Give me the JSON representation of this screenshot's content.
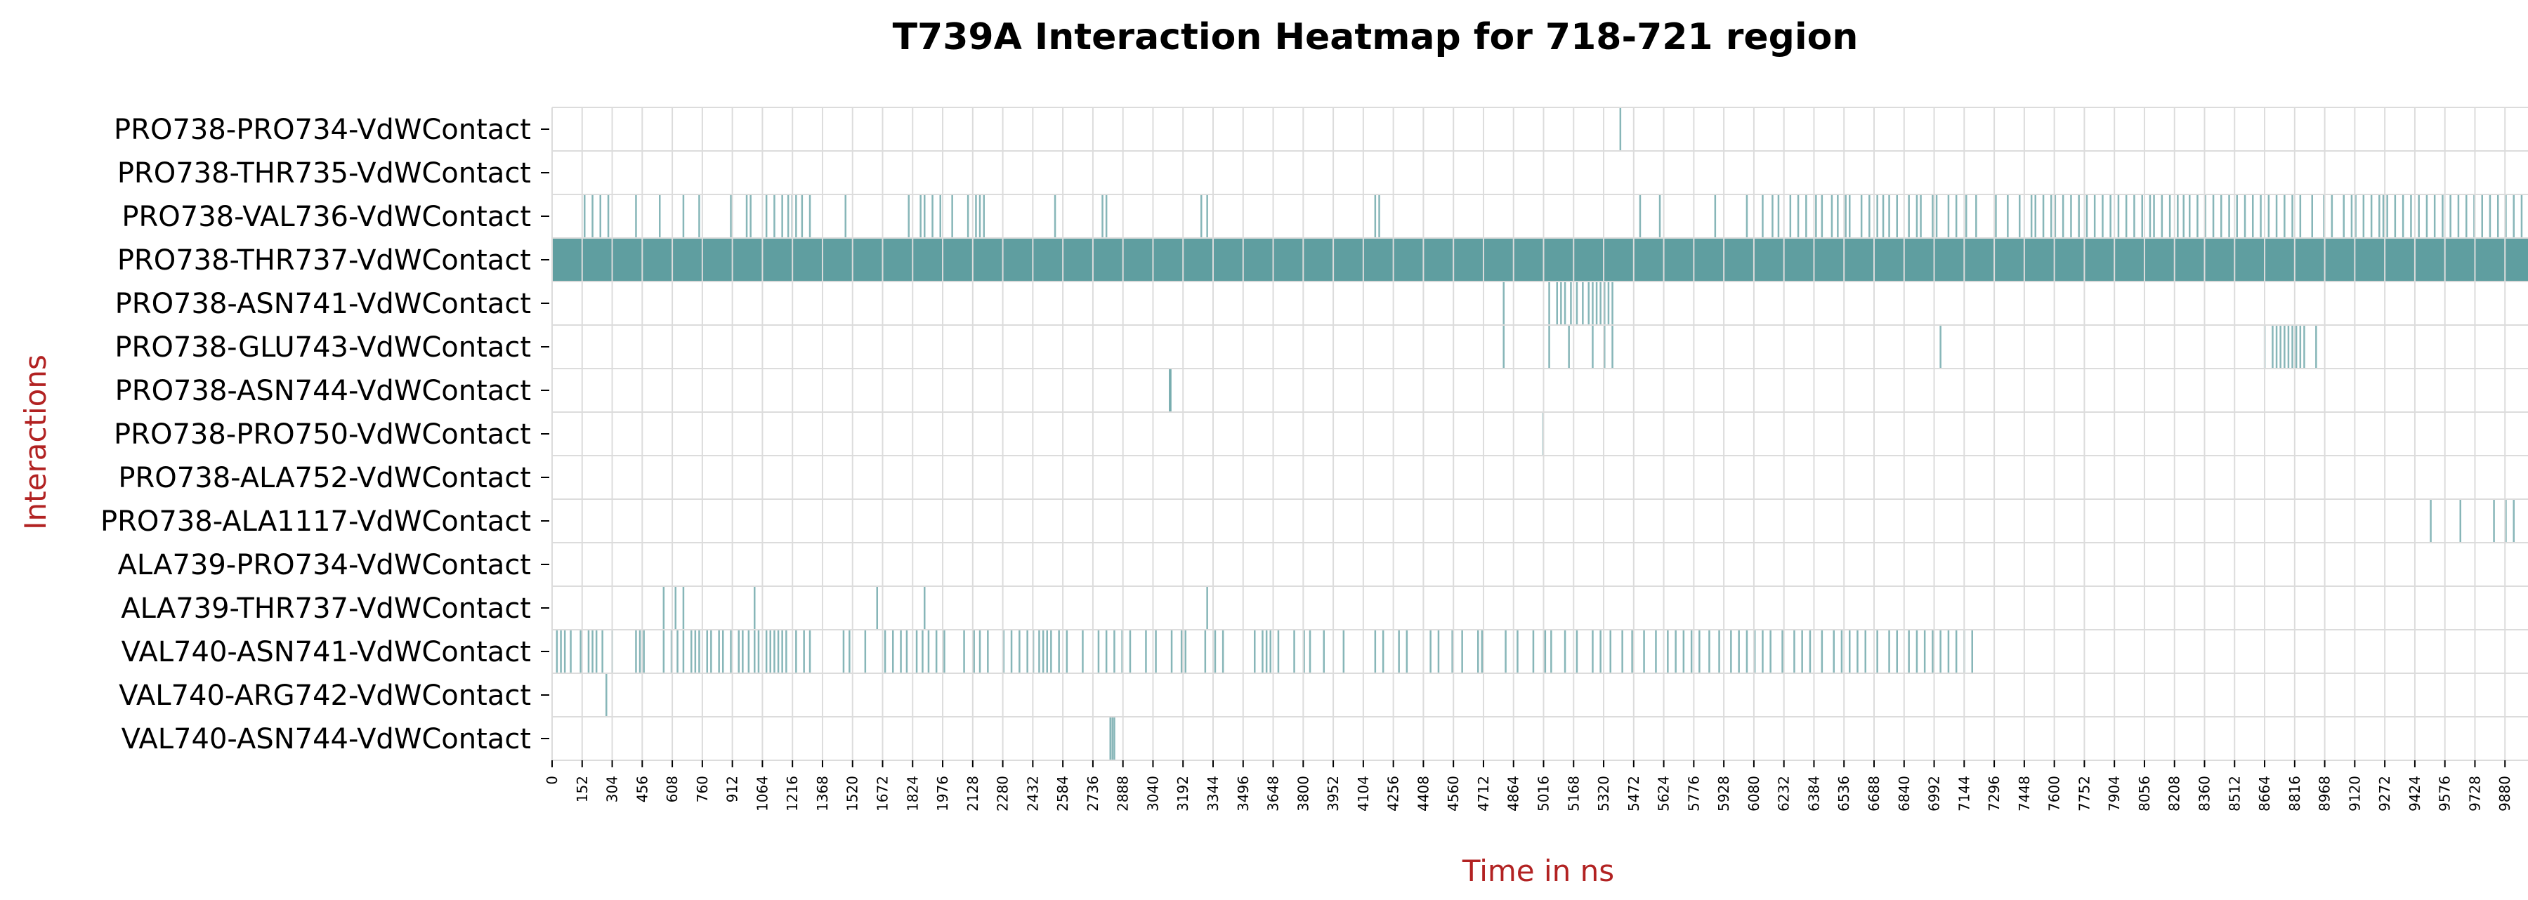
{
  "chart_data": {
    "type": "heatmap",
    "title": "T739A Interaction Heatmap for 718-721 region",
    "xlabel": "Time in ns",
    "ylabel": "Interactions",
    "xlim": [
      0,
      10000
    ],
    "x_ticks": [
      0,
      152,
      304,
      456,
      608,
      760,
      912,
      1064,
      1216,
      1368,
      1520,
      1672,
      1824,
      1976,
      2128,
      2280,
      2432,
      2584,
      2736,
      2888,
      3040,
      3192,
      3344,
      3496,
      3648,
      3800,
      3952,
      4104,
      4256,
      4408,
      4560,
      4712,
      4864,
      5016,
      5168,
      5320,
      5472,
      5624,
      5776,
      5928,
      6080,
      6232,
      6384,
      6536,
      6688,
      6840,
      6992,
      7144,
      7296,
      7448,
      7600,
      7752,
      7904,
      8056,
      8208,
      8360,
      8512,
      8664,
      8816,
      8968,
      9120,
      9272,
      9424,
      9576,
      9728,
      9880
    ],
    "grid": true,
    "cell_color": "#5f9ea0",
    "gap_color": "#ffffff",
    "grid_color": "#dcdcdc",
    "interactions": [
      {
        "name": "PRO738-PRO734-VdWContact",
        "events": [
          5400
        ]
      },
      {
        "name": "PRO738-THR735-VdWContact",
        "events": []
      },
      {
        "name": "PRO738-VAL736-VdWContact",
        "events": [
          160,
          200,
          240,
          280,
          420,
          540,
          660,
          740,
          900,
          980,
          1000,
          1080,
          1120,
          1160,
          1190,
          1210,
          1230,
          1260,
          1300,
          1480,
          1800,
          1860,
          1880,
          1920,
          1960,
          2020,
          2100,
          2140,
          2160,
          2180,
          2540,
          2780,
          2800,
          3280,
          3310,
          4160,
          4180,
          5500,
          5600,
          5880,
          6040,
          6120,
          6170,
          6200,
          6260,
          6300,
          6340,
          6390,
          6420,
          6470,
          6500,
          6540,
          6560,
          6620,
          6660,
          6700,
          6730,
          6760,
          6800,
          6860,
          6900,
          6920,
          6980,
          7000,
          7060,
          7100,
          7150,
          7200,
          7300,
          7360,
          7420,
          7480,
          7500,
          7540,
          7580,
          7600,
          7640,
          7680,
          7720,
          7760,
          7800,
          7840,
          7880,
          7920,
          7960,
          8000,
          8040,
          8080,
          8100,
          8140,
          8180,
          8220,
          8250,
          8280,
          8320,
          8360,
          8400,
          8440,
          8480,
          8520,
          8560,
          8600,
          8640,
          8680,
          8720,
          8760,
          8800,
          8840,
          8900,
          8960,
          9000,
          9060,
          9100,
          9120,
          9160,
          9200,
          9240,
          9260,
          9280,
          9320,
          9360,
          9400,
          9440,
          9480,
          9520,
          9560,
          9600,
          9640,
          9680,
          9720,
          9760,
          9800,
          9840,
          9880,
          9920,
          9960
        ]
      },
      {
        "name": "PRO738-THR737-VdWContact",
        "events": [],
        "solid": true
      },
      {
        "name": "PRO738-ASN741-VdWContact",
        "events": [
          4810,
          5040,
          5080,
          5100,
          5120,
          5150,
          5180,
          5210,
          5240,
          5260,
          5280,
          5300,
          5320,
          5340,
          5360
        ]
      },
      {
        "name": "PRO738-GLU743-VdWContact",
        "events": [
          4810,
          5040,
          5140,
          5260,
          5320,
          5360,
          7020,
          8660,
          8700,
          8720,
          8740,
          8760,
          8780,
          8800,
          8820,
          8840,
          8860,
          8920
        ]
      },
      {
        "name": "PRO738-ASN744-VdWContact",
        "events": [
          3120,
          3125
        ]
      },
      {
        "name": "PRO738-PRO750-VdWContact",
        "events": [
          5010
        ]
      },
      {
        "name": "PRO738-ALA752-VdWContact",
        "events": []
      },
      {
        "name": "PRO738-ALA1117-VdWContact",
        "events": [
          9500,
          9650,
          9820,
          9880,
          9920
        ]
      },
      {
        "name": "ALA739-PRO734-VdWContact",
        "events": []
      },
      {
        "name": "ALA739-THR737-VdWContact",
        "events": [
          560,
          620,
          660,
          1020,
          1640,
          1880,
          3310
        ]
      },
      {
        "name": "VAL740-ASN741-VdWContact",
        "events": [
          20,
          40,
          60,
          90,
          140,
          180,
          200,
          220,
          250,
          300,
          420,
          440,
          460,
          560,
          600,
          630,
          660,
          700,
          720,
          740,
          780,
          800,
          840,
          860,
          900,
          940,
          960,
          990,
          1020,
          1040,
          1080,
          1100,
          1120,
          1140,
          1160,
          1180,
          1230,
          1270,
          1300,
          1470,
          1500,
          1580,
          1680,
          1720,
          1760,
          1790,
          1840,
          1870,
          1900,
          1940,
          1980,
          2080,
          2130,
          2160,
          2200,
          2280,
          2320,
          2360,
          2400,
          2430,
          2460,
          2480,
          2500,
          2520,
          2560,
          2600,
          2680,
          2760,
          2800,
          2840,
          2880,
          2920,
          3000,
          3050,
          3130,
          3180,
          3200,
          3300,
          3350,
          3390,
          3550,
          3590,
          3610,
          3630,
          3670,
          3750,
          3800,
          3830,
          3900,
          4000,
          4160,
          4200,
          4280,
          4320,
          4440,
          4480,
          4550,
          4600,
          4680,
          4700,
          4820,
          4880,
          4960,
          5020,
          5050,
          5120,
          5180,
          5260,
          5300,
          5350,
          5410,
          5460,
          5520,
          5580,
          5640,
          5680,
          5720,
          5760,
          5800,
          5850,
          5900,
          5960,
          6000,
          6040,
          6080,
          6120,
          6160,
          6220,
          6280,
          6320,
          6360,
          6420,
          6480,
          6520,
          6560,
          6600,
          6640,
          6700,
          6760,
          6800,
          6860,
          6900,
          6940,
          6980,
          7020,
          7060,
          7100,
          7140,
          7180
        ]
      },
      {
        "name": "VAL740-ARG742-VdWContact",
        "events": [
          270
        ]
      },
      {
        "name": "VAL740-ASN744-VdWContact",
        "events": [
          2820,
          2830,
          2840
        ]
      }
    ]
  }
}
